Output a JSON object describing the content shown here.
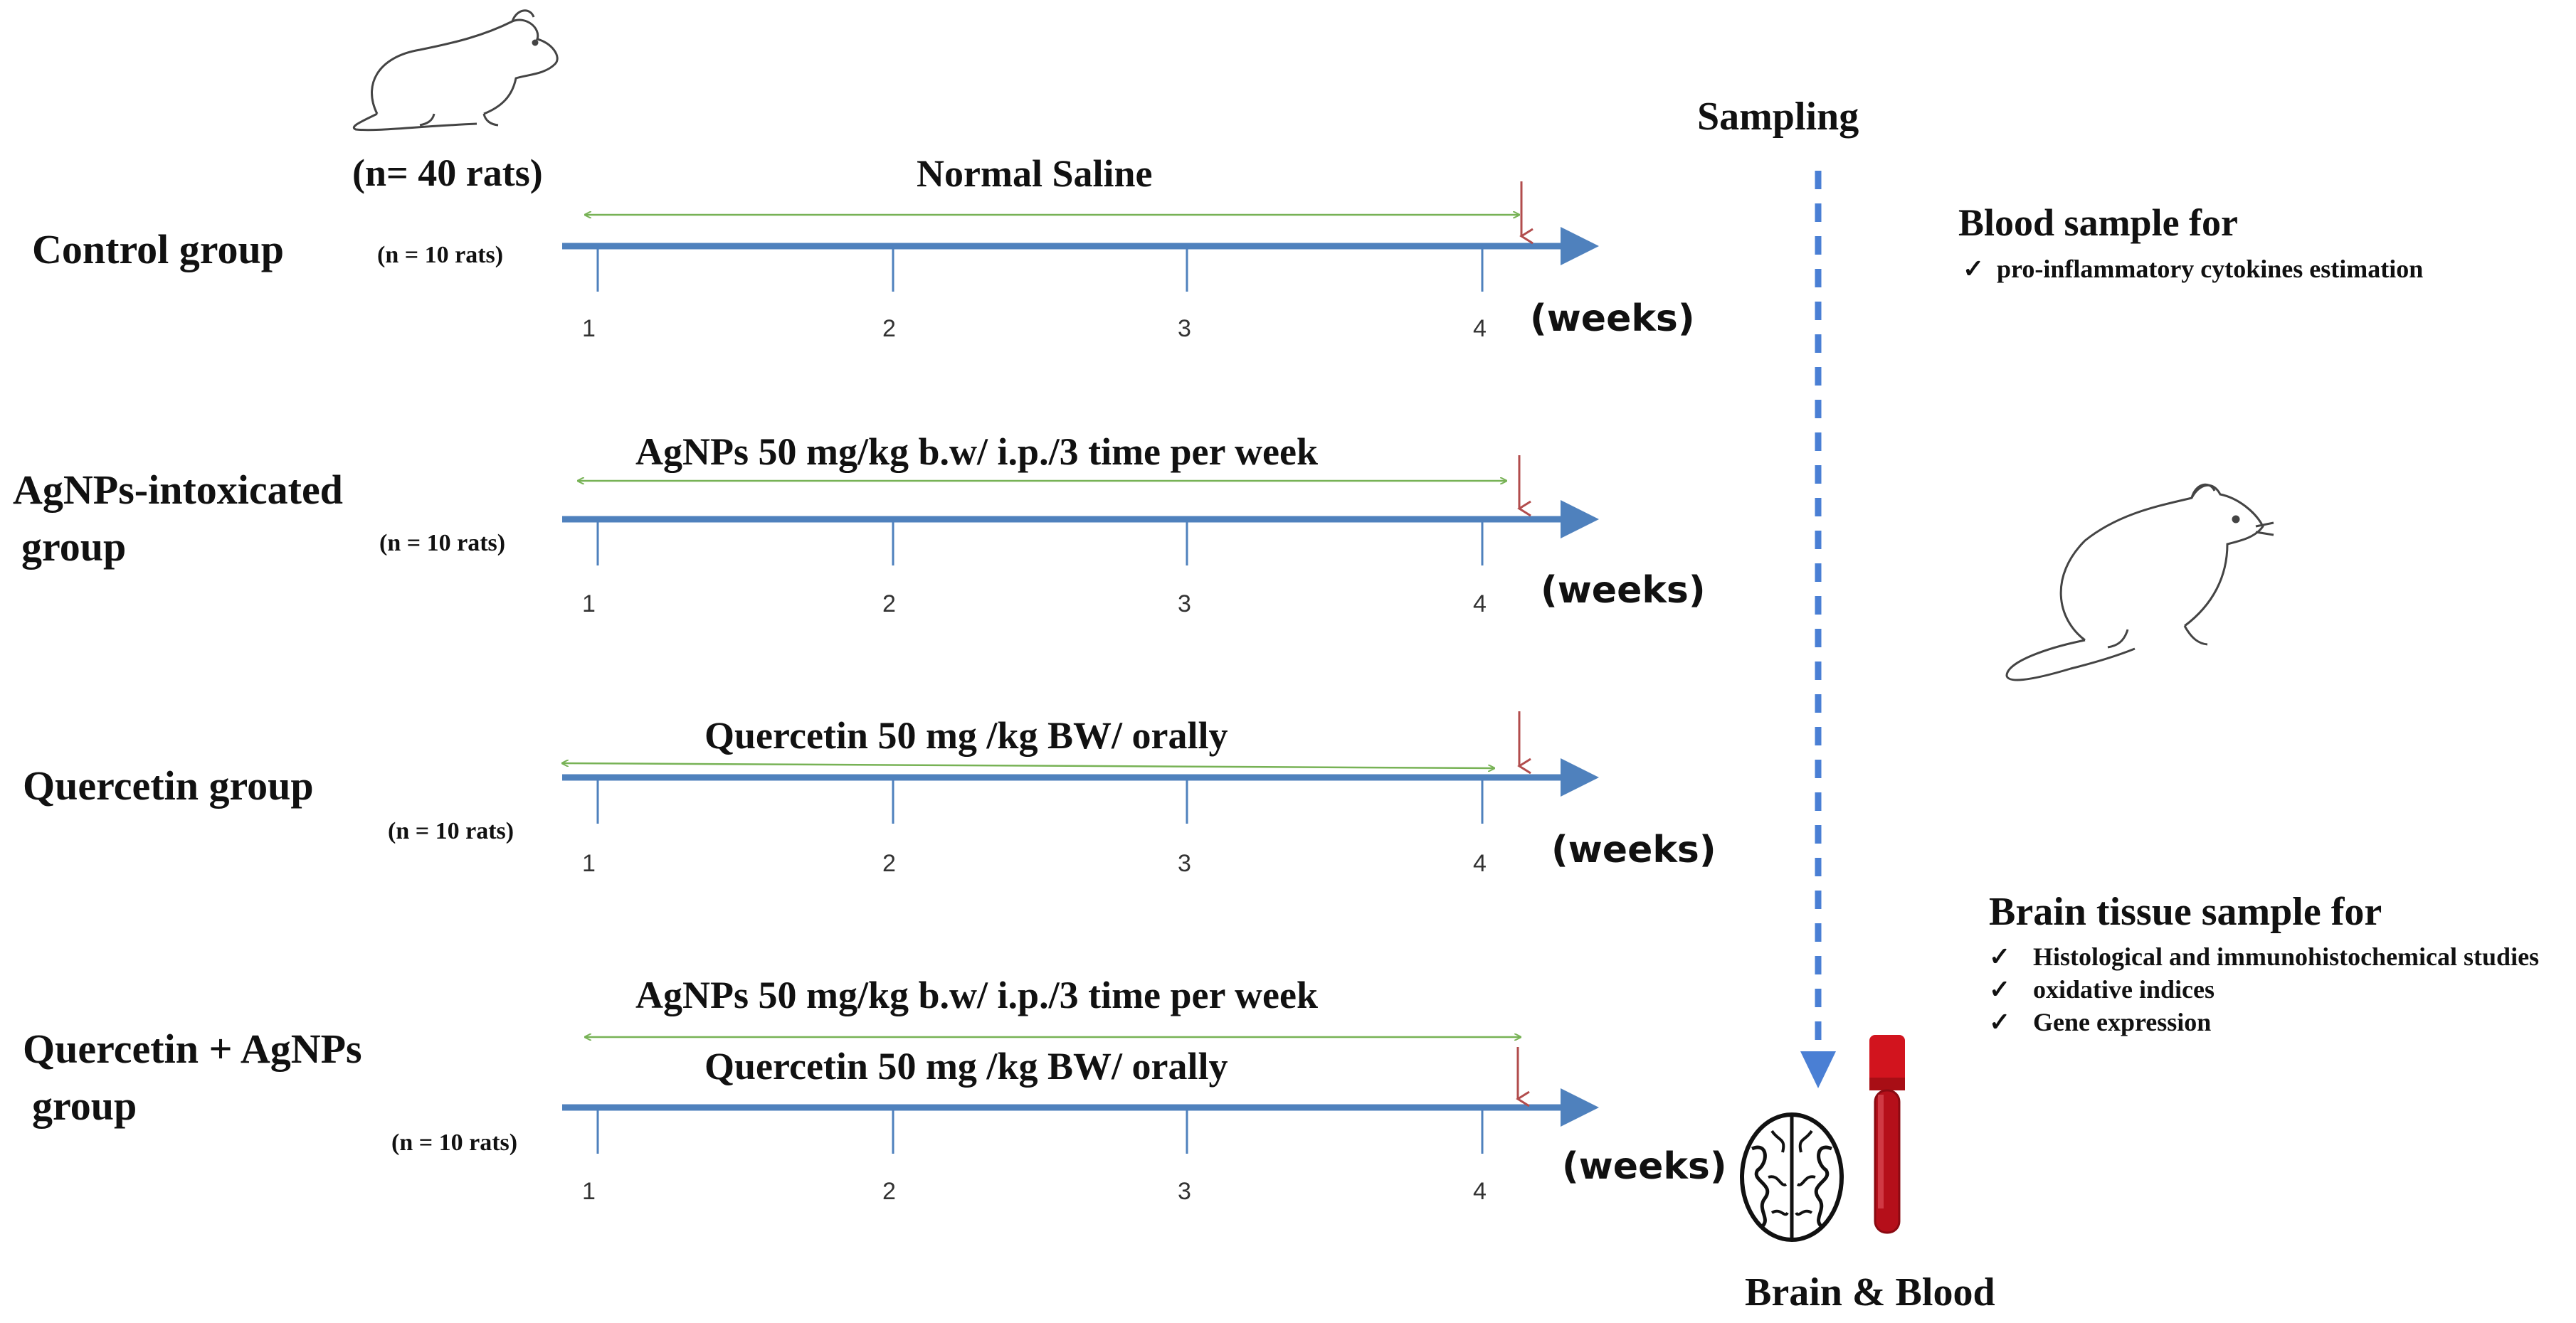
{
  "population": "(n= 40 rats)",
  "sampling": "Sampling",
  "groups": [
    {
      "label": "Control group",
      "n": "(n = 10 rats)",
      "treatments": [
        "Normal Saline"
      ]
    },
    {
      "label_line1": "AgNPs-intoxicated",
      "label_line2": "group",
      "n": "(n = 10 rats)",
      "treatments": [
        "AgNPs 50 mg/kg b.w/ i.p./3 time per week"
      ]
    },
    {
      "label": "Quercetin group",
      "n": "(n = 10 rats)",
      "treatments": [
        "Quercetin 50 mg /kg BW/ orally"
      ]
    },
    {
      "label_line1": "Quercetin + AgNPs",
      "label_line2": "group",
      "n": "(n = 10 rats)",
      "treatments": [
        "AgNPs 50 mg/kg b.w/ i.p./3 time per week",
        "Quercetin 50 mg /kg BW/ orally"
      ]
    }
  ],
  "ticks": [
    "1",
    "2",
    "3",
    "4"
  ],
  "time_unit": "(weeks)",
  "blood": {
    "title": "Blood sample for",
    "check": "✓",
    "items": [
      "pro-inflammatory cytokines estimation"
    ]
  },
  "brain": {
    "title": "Brain tissue sample for",
    "check": "✓",
    "items": [
      "Histological and immunohistochemical studies",
      "oxidative indices",
      "Gene expression"
    ]
  },
  "footer": "Brain & Blood",
  "icons": [
    "rat-icon",
    "brain-icon",
    "blood-tube-icon"
  ],
  "colors": {
    "timeline": "#4f81bd",
    "treatment_arrow": "#77b255",
    "sampling_arrow": "#b24c4c",
    "dashed": "#4a7fd4",
    "tube": "#d2141e"
  }
}
